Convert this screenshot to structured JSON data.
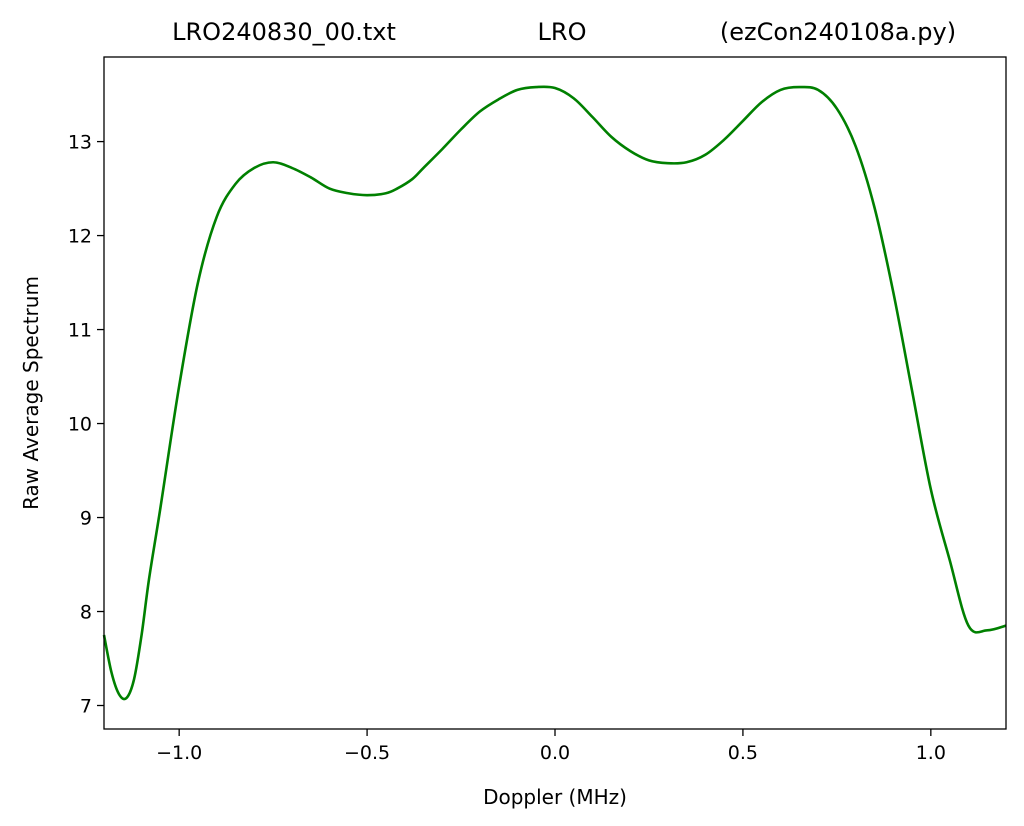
{
  "chart_data": {
    "type": "line",
    "title_parts": [
      "LRO240830_00.txt",
      "LRO",
      "(ezCon240108a.py)"
    ],
    "xlabel": "Doppler (MHz)",
    "ylabel": "Raw Average Spectrum",
    "xlim": [
      -1.2,
      1.2
    ],
    "ylim": [
      6.75,
      13.9
    ],
    "xticks": [
      -1.0,
      -0.5,
      0.0,
      0.5,
      1.0
    ],
    "xtick_labels": [
      "−1.0",
      "−0.5",
      "0.0",
      "0.5",
      "1.0"
    ],
    "yticks": [
      7,
      8,
      9,
      10,
      11,
      12,
      13
    ],
    "ytick_labels": [
      "7",
      "8",
      "9",
      "10",
      "11",
      "12",
      "13"
    ],
    "grid": false,
    "series": [
      {
        "color": "#008000",
        "x": [
          -1.2,
          -1.18,
          -1.16,
          -1.14,
          -1.12,
          -1.1,
          -1.08,
          -1.05,
          -1.0,
          -0.95,
          -0.9,
          -0.85,
          -0.8,
          -0.75,
          -0.7,
          -0.65,
          -0.6,
          -0.55,
          -0.5,
          -0.45,
          -0.42,
          -0.38,
          -0.35,
          -0.3,
          -0.25,
          -0.2,
          -0.15,
          -0.1,
          -0.05,
          0.0,
          0.05,
          0.1,
          0.15,
          0.2,
          0.25,
          0.3,
          0.35,
          0.4,
          0.45,
          0.5,
          0.55,
          0.6,
          0.65,
          0.7,
          0.75,
          0.8,
          0.85,
          0.9,
          0.95,
          1.0,
          1.05,
          1.1,
          1.15,
          1.2
        ],
        "y": [
          7.75,
          7.35,
          7.12,
          7.08,
          7.28,
          7.75,
          8.35,
          9.1,
          10.4,
          11.5,
          12.2,
          12.55,
          12.72,
          12.78,
          12.72,
          12.62,
          12.5,
          12.45,
          12.43,
          12.45,
          12.5,
          12.6,
          12.72,
          12.92,
          13.13,
          13.32,
          13.45,
          13.55,
          13.58,
          13.57,
          13.46,
          13.26,
          13.05,
          12.9,
          12.8,
          12.77,
          12.78,
          12.86,
          13.02,
          13.22,
          13.42,
          13.55,
          13.58,
          13.55,
          13.35,
          12.95,
          12.3,
          11.4,
          10.35,
          9.3,
          8.55,
          7.85,
          7.8,
          7.85
        ]
      }
    ]
  }
}
